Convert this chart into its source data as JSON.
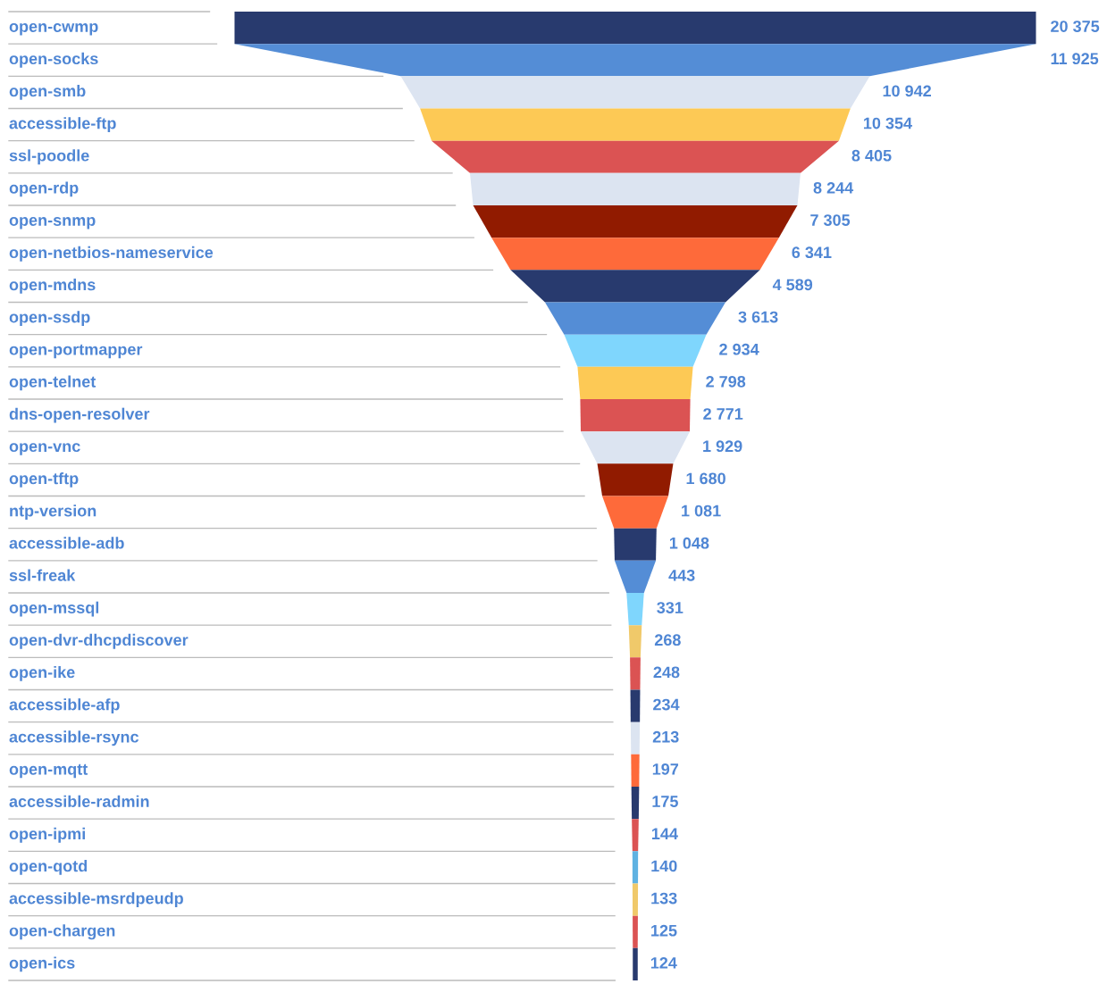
{
  "chart_data": {
    "type": "other",
    "categories": [
      "open-cwmp",
      "open-socks",
      "open-smb",
      "accessible-ftp",
      "ssl-poodle",
      "open-rdp",
      "open-snmp",
      "open-netbios-nameservice",
      "open-mdns",
      "open-ssdp",
      "open-portmapper",
      "open-telnet",
      "dns-open-resolver",
      "open-vnc",
      "open-tftp",
      "ntp-version",
      "accessible-adb",
      "ssl-freak",
      "open-mssql",
      "open-dvr-dhcpdiscover",
      "open-ike",
      "accessible-afp",
      "accessible-rsync",
      "open-mqtt",
      "accessible-radmin",
      "open-ipmi",
      "open-qotd",
      "accessible-msrdpeudp",
      "open-chargen",
      "open-ics"
    ],
    "values": [
      20375,
      11925,
      10942,
      10354,
      8405,
      8244,
      7305,
      6341,
      4589,
      3613,
      2934,
      2798,
      2771,
      1929,
      1680,
      1081,
      1048,
      443,
      331,
      268,
      248,
      234,
      213,
      197,
      175,
      144,
      140,
      133,
      125,
      124
    ],
    "value_labels": [
      "20 375",
      "11 925",
      "10 942",
      "10 354",
      "8 405",
      "8 244",
      "7 305",
      "6 341",
      "4 589",
      "3 613",
      "2 934",
      "2 798",
      "2 771",
      "1 929",
      "1 680",
      "1 081",
      "1 048",
      "443",
      "331",
      "268",
      "248",
      "234",
      "213",
      "197",
      "175",
      "144",
      "140",
      "133",
      "125",
      "124"
    ],
    "colors": [
      "#283a6e",
      "#548dd6",
      "#dce4f1",
      "#fdc955",
      "#db5353",
      "#dce4f1",
      "#911b00",
      "#fe6a3a",
      "#283a6e",
      "#548dd6",
      "#7fd6fd",
      "#fdc955",
      "#db5353",
      "#dce4f1",
      "#911b00",
      "#fe6a3a",
      "#283a6e",
      "#548dd6",
      "#7fd6fd",
      "#f0c96a",
      "#db5353",
      "#283a6e",
      "#dce4f1",
      "#fe6a3a",
      "#283a6e",
      "#db5353",
      "#5fb2e2",
      "#f0c96a",
      "#db5353",
      "#283a6e"
    ]
  }
}
